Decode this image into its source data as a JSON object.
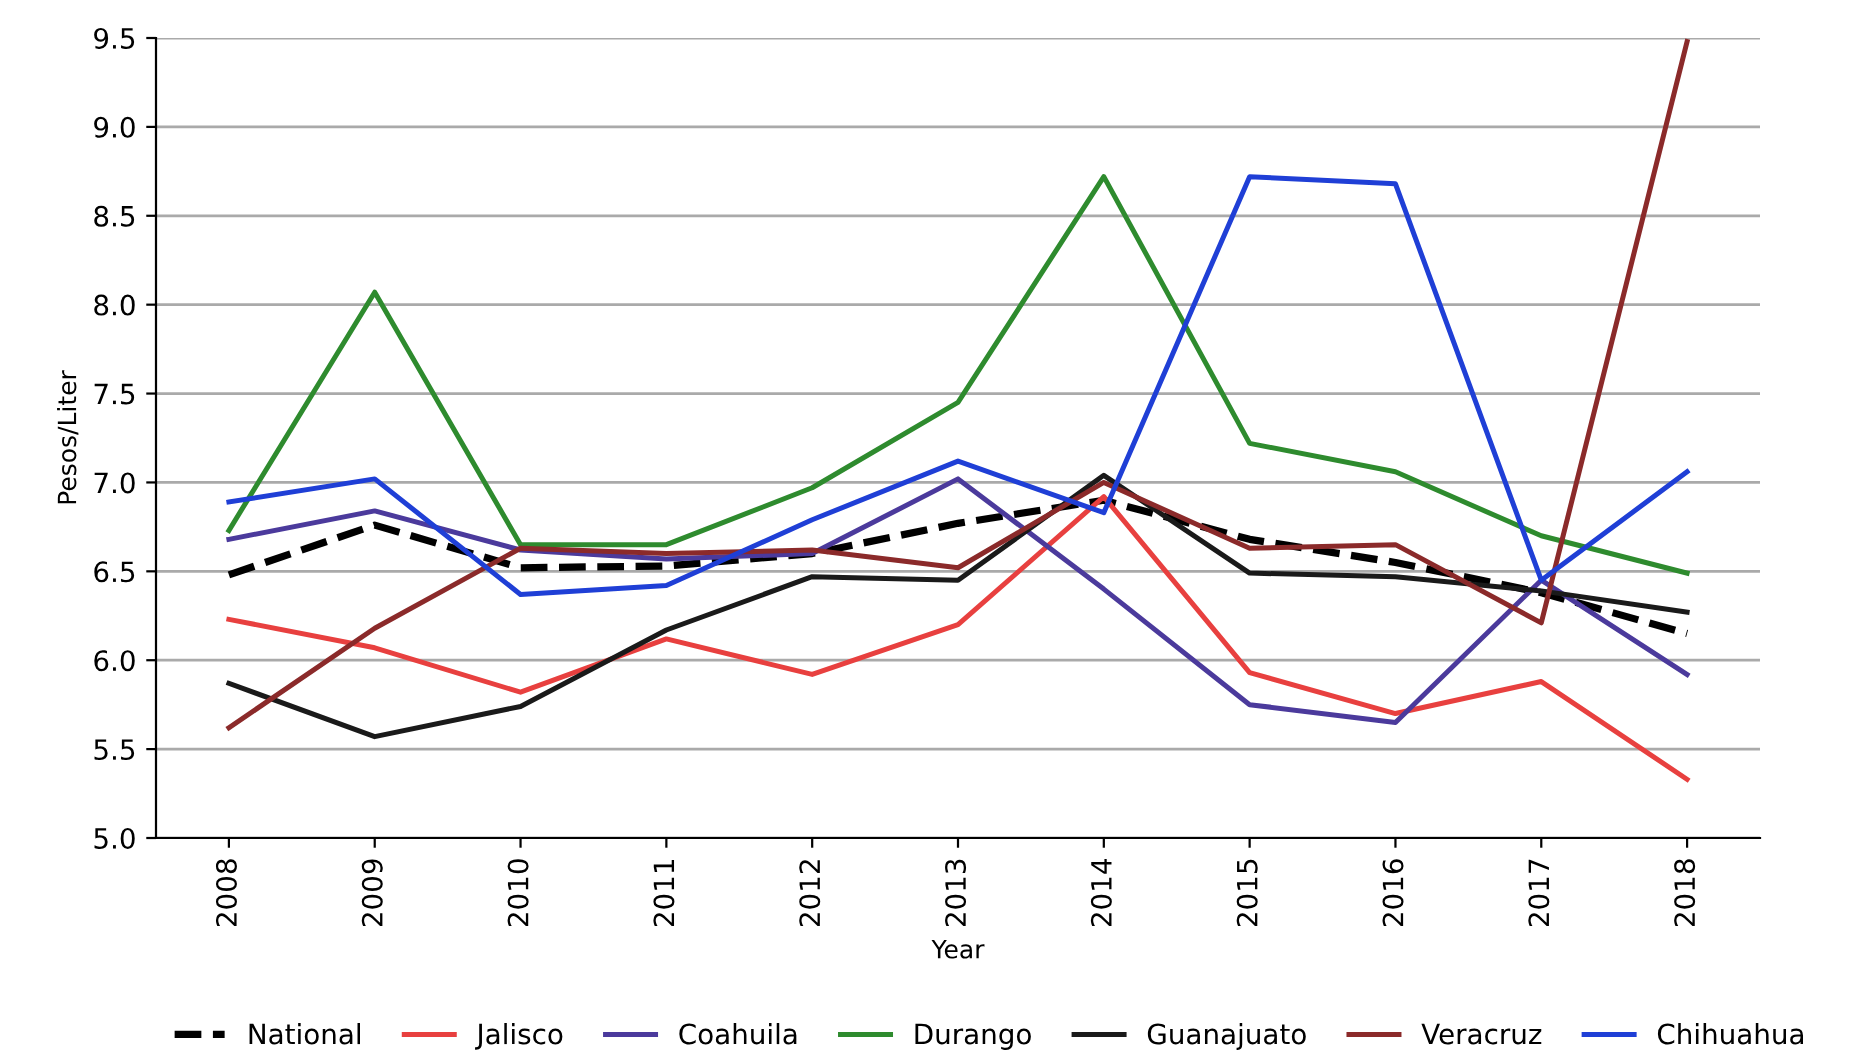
{
  "chart_data": {
    "type": "line",
    "xlabel": "Year",
    "ylabel": "Pesos/Liter",
    "categories": [
      "2008",
      "2009",
      "2010",
      "2011",
      "2012",
      "2013",
      "2014",
      "2015",
      "2016",
      "2017",
      "2018"
    ],
    "ylim": [
      5.0,
      9.5
    ],
    "yticks": [
      {
        "value": 5.0,
        "label": "5.0"
      },
      {
        "value": 5.5,
        "label": "5.5"
      },
      {
        "value": 6.0,
        "label": "6.0"
      },
      {
        "value": 6.5,
        "label": "6.5"
      },
      {
        "value": 7.0,
        "label": "7.0"
      },
      {
        "value": 7.5,
        "label": "7.5"
      },
      {
        "value": 8.0,
        "label": "8.0"
      },
      {
        "value": 8.5,
        "label": "8.5"
      },
      {
        "value": 9.0,
        "label": "9.0"
      },
      {
        "value": 9.5,
        "label": "9.5"
      }
    ],
    "grid": "y",
    "legend": "bottom",
    "marker": "none",
    "series": [
      {
        "name": "National",
        "color": "#000000",
        "line_style": "dashed",
        "values": [
          6.48,
          6.76,
          6.52,
          6.53,
          6.6,
          6.77,
          6.9,
          6.68,
          6.55,
          6.38,
          6.15
        ]
      },
      {
        "name": "Jalisco",
        "color": "#e8403f",
        "values": [
          6.23,
          6.07,
          5.82,
          6.12,
          5.92,
          6.2,
          6.92,
          5.93,
          5.7,
          5.88,
          5.33
        ]
      },
      {
        "name": "Coahuila",
        "color": "#4b3a9c",
        "values": [
          6.68,
          6.84,
          6.62,
          6.57,
          6.6,
          7.02,
          6.4,
          5.75,
          5.65,
          6.45,
          5.92
        ]
      },
      {
        "name": "Durango",
        "color": "#2e8b2e",
        "values": [
          6.73,
          8.07,
          6.65,
          6.65,
          6.97,
          7.45,
          8.72,
          7.22,
          7.06,
          6.7,
          6.49
        ]
      },
      {
        "name": "Guanajuato",
        "color": "#1a1a1a",
        "values": [
          5.87,
          5.57,
          5.74,
          6.17,
          6.47,
          6.45,
          7.04,
          6.49,
          6.47,
          6.39,
          6.27
        ]
      },
      {
        "name": "Veracruz",
        "color": "#8b2a2a",
        "values": [
          5.62,
          6.18,
          6.63,
          6.6,
          6.62,
          6.52,
          7.0,
          6.63,
          6.65,
          6.21,
          9.48
        ]
      },
      {
        "name": "Chihuahua",
        "color": "#1f3fd6",
        "values": [
          6.89,
          7.02,
          6.37,
          6.42,
          6.79,
          7.12,
          6.83,
          8.72,
          8.68,
          6.45,
          7.06
        ]
      }
    ]
  }
}
